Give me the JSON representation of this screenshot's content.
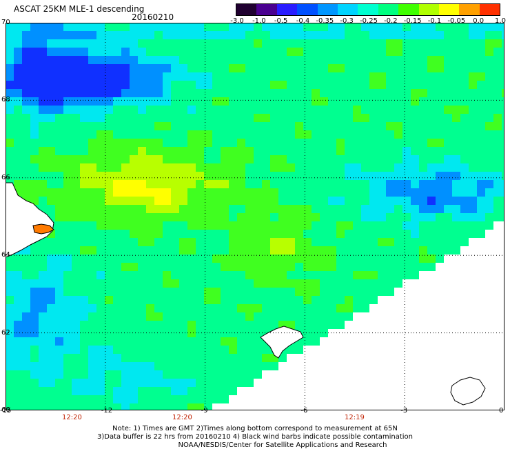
{
  "title": "ASCAT 25KM MLE-1 descending",
  "date": "20160210",
  "colorbar": {
    "labels": [
      "-3.0",
      "-1.0",
      "-0.5",
      "-0.4",
      "-0.35",
      "-0.3",
      "-0.25",
      "-0.2",
      "-0.15",
      "-0.1",
      "-0.05",
      "0.0",
      "1.0"
    ],
    "colors": [
      "#200030",
      "#4a0090",
      "#2a1cff",
      "#0050ff",
      "#0096ff",
      "#00d4ff",
      "#00ffd0",
      "#00ff80",
      "#40ff00",
      "#b0ff00",
      "#ffff00",
      "#ffa000",
      "#ff3000"
    ]
  },
  "axes": {
    "x_ticks": [
      "-15",
      "-12",
      "-9",
      "-6",
      "-3",
      "0"
    ],
    "y_ticks": [
      "70",
      "68",
      "66",
      "64",
      "62",
      "60"
    ],
    "xlim": [
      -15,
      0
    ],
    "ylim": [
      60,
      70
    ],
    "grid": true
  },
  "times": [
    "12:20",
    "12:20",
    "12:19"
  ],
  "notes": [
    "Note: 1) Times are GMT 2)Times along bottom correspond to measurement at 65N",
    "3)Data buffer is 22 hrs from 20160210 4) Black wind barbs indicate possible contamination",
    "NOAA/NESDIS/Center for Satellite Applications and Research"
  ],
  "colors": {
    "land_no_data": "#ffffff",
    "coastline": "#000000"
  }
}
